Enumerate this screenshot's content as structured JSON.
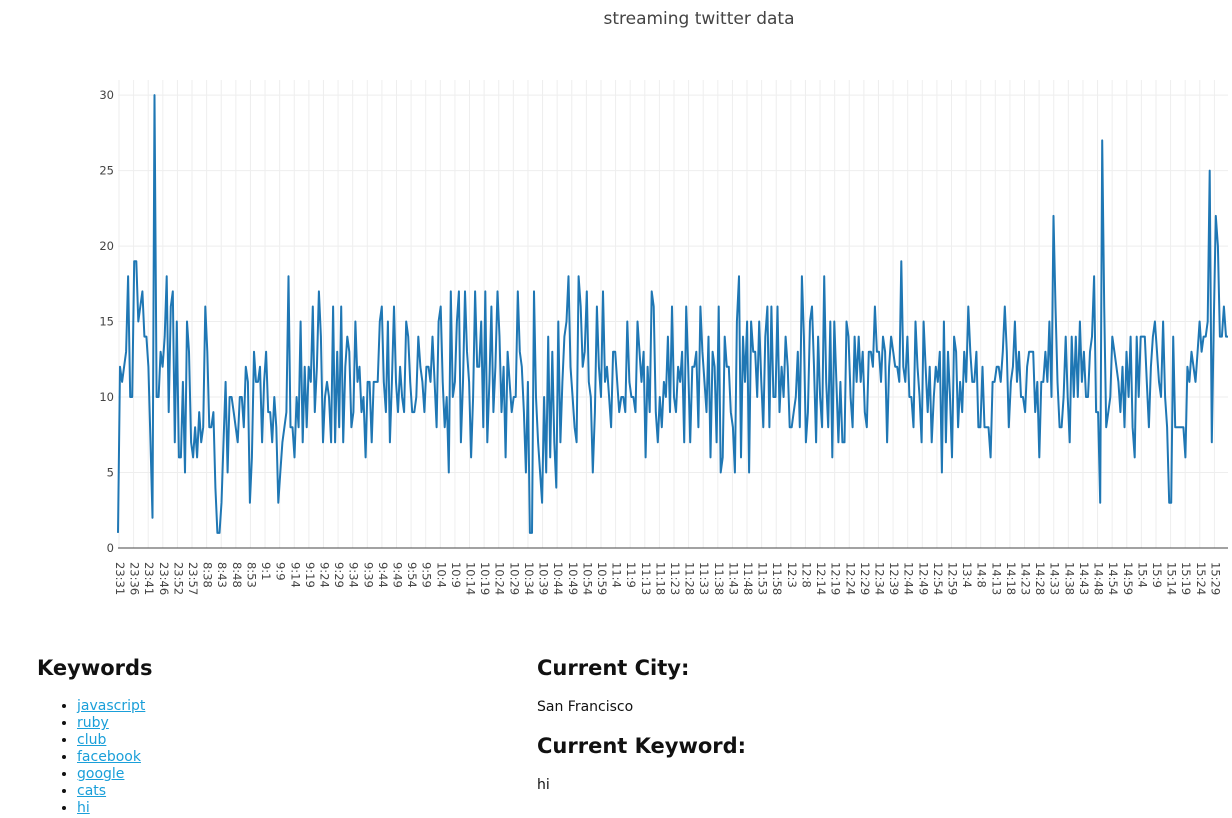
{
  "chart_data": {
    "type": "line",
    "title": "streaming twitter data",
    "xlabel": "",
    "ylabel": "",
    "ylim": [
      0,
      31
    ],
    "grid": true,
    "legend": "none",
    "yticks": [
      0,
      5,
      10,
      15,
      20,
      25,
      30
    ],
    "x_tick_labels": [
      "23:31",
      "23:36",
      "23:41",
      "23:46",
      "23:52",
      "23:57",
      "8:38",
      "8:43",
      "8:48",
      "8:53",
      "9:1",
      "9:9",
      "9:14",
      "9:19",
      "9:24",
      "9:29",
      "9:34",
      "9:39",
      "9:44",
      "9:49",
      "9:54",
      "9:59",
      "10:4",
      "10:9",
      "10:14",
      "10:19",
      "10:24",
      "10:29",
      "10:34",
      "10:39",
      "10:44",
      "10:49",
      "10:54",
      "10:59",
      "11:4",
      "11:9",
      "11:13",
      "11:18",
      "11:23",
      "11:28",
      "11:33",
      "11:38",
      "11:43",
      "11:48",
      "11:53",
      "11:58",
      "12:3",
      "12:8",
      "12:14",
      "12:19",
      "12:24",
      "12:29",
      "12:34",
      "12:39",
      "12:44",
      "12:49",
      "12:54",
      "12:59",
      "13:4",
      "14:8",
      "14:13",
      "14:18",
      "14:23",
      "14:28",
      "14:33",
      "14:38",
      "14:43",
      "14:48",
      "14:54",
      "14:59",
      "15:4",
      "15:9",
      "15:14",
      "15:19",
      "15:24",
      "15:29"
    ],
    "series": [
      {
        "name": "",
        "color": "#1f77b4",
        "values": [
          1,
          12,
          11,
          12,
          13,
          18,
          10,
          10,
          19,
          19,
          15,
          16,
          17,
          14,
          14,
          12,
          7,
          2,
          30,
          10,
          10,
          13,
          12,
          14,
          18,
          9,
          16,
          17,
          7,
          15,
          6,
          6,
          11,
          5,
          15,
          13,
          7,
          6,
          8,
          6,
          9,
          7,
          8,
          16,
          13,
          8,
          8,
          9,
          4,
          1,
          1,
          3,
          7,
          11,
          5,
          10,
          10,
          9,
          8,
          7,
          10,
          10,
          8,
          12,
          11,
          3,
          6,
          13,
          11,
          11,
          12,
          7,
          11,
          13,
          9,
          9,
          7,
          10,
          8,
          3,
          5,
          7,
          8,
          9,
          18,
          8,
          8,
          6,
          10,
          8,
          15,
          7,
          12,
          8,
          12,
          11,
          16,
          9,
          12,
          17,
          14,
          7,
          10,
          11,
          10,
          7,
          16,
          7,
          13,
          8,
          16,
          7,
          12,
          14,
          13,
          8,
          9,
          15,
          11,
          12,
          9,
          10,
          6,
          11,
          11,
          7,
          11,
          11,
          11,
          15,
          16,
          11,
          9,
          15,
          7,
          11,
          16,
          11,
          9,
          12,
          10,
          9,
          15,
          14,
          11,
          9,
          9,
          10,
          14,
          12,
          11,
          9,
          12,
          12,
          11,
          14,
          11,
          8,
          15,
          16,
          11,
          8,
          10,
          5,
          17,
          10,
          11,
          15,
          17,
          7,
          11,
          17,
          13,
          11,
          6,
          10,
          17,
          12,
          12,
          15,
          8,
          17,
          7,
          11,
          16,
          9,
          12,
          17,
          14,
          9,
          12,
          6,
          13,
          11,
          9,
          10,
          10,
          17,
          13,
          12,
          9,
          5,
          11,
          1,
          1,
          17,
          10,
          7,
          5,
          3,
          10,
          5,
          14,
          6,
          13,
          7,
          4,
          15,
          7,
          11,
          14,
          15,
          18,
          12,
          10,
          8,
          7,
          18,
          16,
          12,
          13,
          17,
          11,
          10,
          5,
          9,
          16,
          12,
          10,
          17,
          11,
          12,
          10,
          8,
          13,
          13,
          11,
          9,
          10,
          10,
          9,
          15,
          11,
          10,
          10,
          9,
          15,
          13,
          11,
          13,
          6,
          12,
          9,
          17,
          16,
          9,
          7,
          10,
          8,
          11,
          10,
          14,
          9,
          16,
          10,
          9,
          12,
          11,
          13,
          7,
          16,
          12,
          7,
          12,
          12,
          13,
          8,
          16,
          13,
          11,
          9,
          14,
          6,
          13,
          12,
          7,
          16,
          5,
          6,
          14,
          12,
          12,
          9,
          8,
          5,
          15,
          18,
          6,
          14,
          11,
          15,
          5,
          15,
          13,
          13,
          10,
          15,
          11,
          8,
          14,
          16,
          8,
          16,
          10,
          10,
          16,
          9,
          12,
          10,
          14,
          12,
          8,
          8,
          9,
          10,
          13,
          8,
          18,
          14,
          7,
          9,
          15,
          16,
          12,
          7,
          14,
          10,
          8,
          18,
          11,
          8,
          15,
          6,
          15,
          11,
          7,
          11,
          7,
          7,
          15,
          14,
          10,
          8,
          14,
          11,
          14,
          11,
          13,
          9,
          8,
          13,
          13,
          12,
          16,
          13,
          13,
          11,
          14,
          13,
          7,
          12,
          14,
          13,
          12,
          12,
          11,
          19,
          12,
          11,
          14,
          10,
          10,
          8,
          15,
          12,
          10,
          7,
          15,
          12,
          9,
          12,
          7,
          10,
          12,
          11,
          13,
          5,
          15,
          7,
          13,
          10,
          6,
          14,
          13,
          8,
          11,
          9,
          13,
          11,
          16,
          13,
          11,
          11,
          13,
          8,
          8,
          12,
          8,
          8,
          8,
          6,
          11,
          11,
          12,
          12,
          11,
          13,
          16,
          13,
          8,
          11,
          12,
          15,
          11,
          13,
          10,
          10,
          9,
          12,
          13,
          13,
          13,
          9,
          11,
          6,
          11,
          11,
          13,
          11,
          15,
          10,
          22,
          16,
          11,
          8,
          8,
          10,
          14,
          10,
          7,
          14,
          10,
          14,
          10,
          15,
          11,
          13,
          10,
          10,
          13,
          14,
          18,
          9,
          9,
          3,
          27,
          16,
          8,
          9,
          10,
          14,
          13,
          12,
          11,
          9,
          12,
          8,
          13,
          10,
          14,
          8,
          6,
          14,
          10,
          14,
          14,
          14,
          11,
          8,
          12,
          14,
          15,
          13,
          11,
          10,
          15,
          10,
          8,
          3,
          3,
          14,
          8,
          8,
          8,
          8,
          8,
          6,
          12,
          11,
          13,
          12,
          11,
          13,
          15,
          13,
          14,
          14,
          15,
          25,
          7,
          15,
          22,
          20,
          14,
          14,
          16,
          14,
          14
        ]
      }
    ]
  },
  "keywords": {
    "heading": "Keywords",
    "items": [
      "javascript",
      "ruby",
      "club",
      "facebook",
      "google",
      "cats",
      "hi"
    ]
  },
  "info": {
    "city_heading": "Current City:",
    "city_value": "San Francisco",
    "keyword_heading": "Current Keyword:",
    "keyword_value": "hi"
  }
}
